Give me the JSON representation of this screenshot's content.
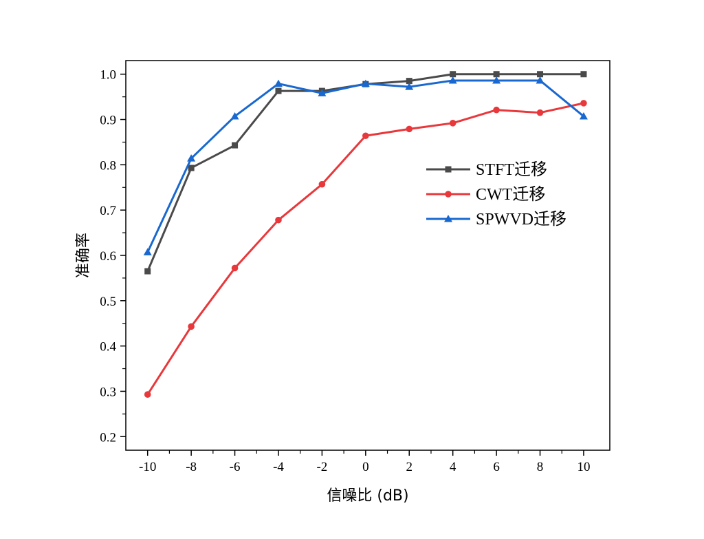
{
  "chart_data": {
    "type": "line",
    "title": "",
    "xlabel": "信噪比 (dB)",
    "ylabel": "准确率",
    "x": [
      -10,
      -8,
      -6,
      -4,
      -2,
      0,
      2,
      4,
      6,
      8,
      10
    ],
    "xlim": [
      -11,
      11.2
    ],
    "ylim": [
      0.17,
      1.03
    ],
    "xticks": [
      -10,
      -8,
      -6,
      -4,
      -2,
      0,
      2,
      4,
      6,
      8,
      10
    ],
    "yticks": [
      0.2,
      0.3,
      0.4,
      0.5,
      0.6,
      0.7,
      0.8,
      0.9,
      1.0
    ],
    "ytick_labels": [
      "0.2",
      "0.3",
      "0.4",
      "0.5",
      "0.6",
      "0.7",
      "0.8",
      "0.9",
      "1.0"
    ],
    "grid": false,
    "legend_position": "center-right",
    "series": [
      {
        "name": "STFT迁移",
        "color": "#4a4a4a",
        "marker": "square",
        "values": [
          0.565,
          0.793,
          0.843,
          0.963,
          0.963,
          0.978,
          0.985,
          1.0,
          1.0,
          1.0,
          1.0
        ]
      },
      {
        "name": "CWT迁移",
        "color": "#e8383b",
        "marker": "circle",
        "values": [
          0.293,
          0.443,
          0.572,
          0.678,
          0.757,
          0.864,
          0.879,
          0.892,
          0.921,
          0.915,
          0.936
        ]
      },
      {
        "name": "SPWVD迁移",
        "color": "#1868d0",
        "marker": "triangle",
        "values": [
          0.607,
          0.814,
          0.907,
          0.979,
          0.958,
          0.979,
          0.972,
          0.986,
          0.986,
          0.986,
          0.907
        ]
      }
    ]
  }
}
